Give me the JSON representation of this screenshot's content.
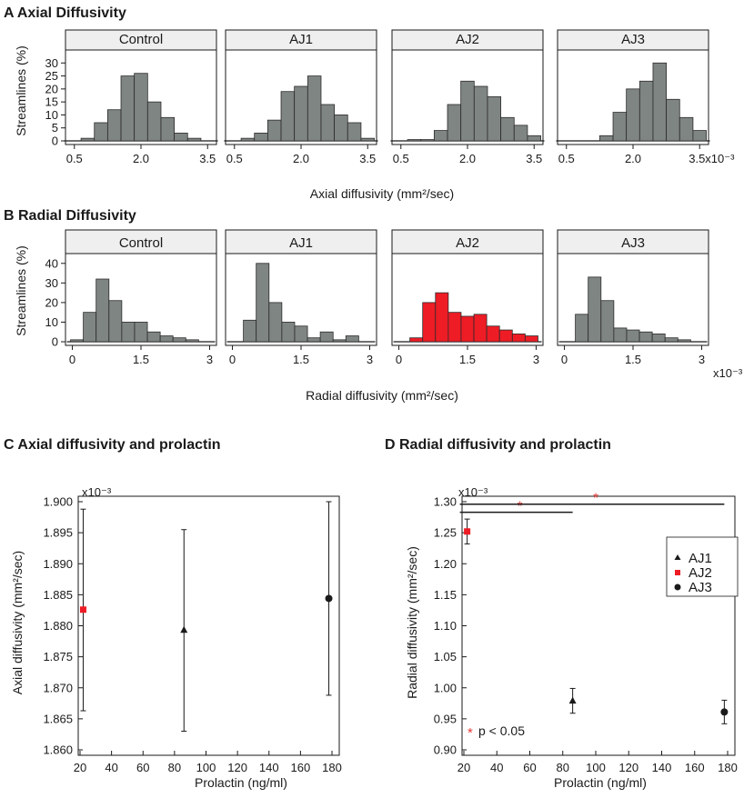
{
  "colors": {
    "gray_bar": "#7f8583",
    "red_bar": "#ee1c25",
    "axis": "#1a1a1a",
    "facet_bg": "#efefef",
    "highlight": "#e53935"
  },
  "chart_data": [
    {
      "id": "A",
      "type": "bar",
      "title": "A Axial Diffusivity",
      "ylabel": "Streamlines (%)",
      "xlabel": "Axial diffusivity (mm²/sec)",
      "exponent": "x10⁻³",
      "ylim": [
        0,
        35
      ],
      "yticks": [
        0,
        5,
        10,
        15,
        20,
        25,
        30
      ],
      "xrange": [
        0.3,
        3.7
      ],
      "xticks": [
        {
          "v": 0.5,
          "label": "0.5"
        },
        {
          "v": 2.0,
          "label": "2.0"
        },
        {
          "v": 3.5,
          "label": "3.5"
        }
      ],
      "last_tick_label": "3.5x10⁻³",
      "bin_width": 0.3,
      "bin_centers": [
        0.5,
        0.8,
        1.1,
        1.4,
        1.7,
        2.0,
        2.3,
        2.6,
        2.9,
        3.2,
        3.5
      ],
      "panels": [
        {
          "label": "Control",
          "color": "gray",
          "values": [
            0,
            1,
            7,
            12,
            25,
            26,
            15,
            9,
            3,
            1,
            0
          ]
        },
        {
          "label": "AJ1",
          "color": "gray",
          "values": [
            0,
            1,
            3,
            8,
            19,
            21,
            25,
            14,
            10,
            7,
            1
          ]
        },
        {
          "label": "AJ2",
          "color": "gray",
          "values": [
            0,
            0.5,
            0.5,
            4,
            14,
            23,
            21,
            17,
            9,
            6,
            2
          ]
        },
        {
          "label": "AJ3",
          "color": "gray",
          "values": [
            0,
            0,
            0,
            2,
            11,
            20,
            23,
            30,
            16,
            9,
            4
          ]
        }
      ]
    },
    {
      "id": "B",
      "type": "bar",
      "title": "B Radial Diffusivity",
      "ylabel": "Streamlines (%)",
      "xlabel": "Radial diffusivity (mm²/sec)",
      "exponent": "x10⁻³",
      "ylim": [
        0,
        45
      ],
      "yticks": [
        0,
        10,
        20,
        30,
        40
      ],
      "xrange": [
        -0.15,
        3.15
      ],
      "xticks": [
        {
          "v": 0,
          "label": "0"
        },
        {
          "v": 1.5,
          "label": "1.5"
        },
        {
          "v": 3,
          "label": "3"
        }
      ],
      "last_tick_label": "3",
      "bin_width": 0.28,
      "bin_centers": [
        0.1,
        0.38,
        0.66,
        0.94,
        1.22,
        1.5,
        1.78,
        2.06,
        2.34,
        2.62,
        2.9
      ],
      "panels": [
        {
          "label": "Control",
          "color": "gray",
          "values": [
            1,
            15,
            32,
            21,
            10,
            10,
            5,
            3,
            2,
            1,
            0
          ]
        },
        {
          "label": "AJ1",
          "color": "gray",
          "values": [
            0,
            11,
            40,
            20,
            10,
            8,
            2,
            5,
            1,
            3,
            0
          ]
        },
        {
          "label": "AJ2",
          "color": "red",
          "values": [
            0,
            2,
            20,
            25,
            15,
            13,
            14,
            8,
            6,
            4,
            3
          ]
        },
        {
          "label": "AJ3",
          "color": "gray",
          "values": [
            0,
            14,
            33,
            21,
            7,
            6,
            5,
            4,
            2,
            1,
            0
          ]
        }
      ]
    },
    {
      "id": "C",
      "type": "scatter",
      "title": "C   Axial diffusivity and prolactin",
      "xlabel": "Prolactin (ng/ml)",
      "ylabel": "Axial diffusivity (mm²/sec)",
      "exponent": "x10⁻³",
      "xlim": [
        20,
        180
      ],
      "xticks": [
        20,
        40,
        60,
        80,
        100,
        120,
        140,
        160,
        180
      ],
      "ylim": [
        1.86,
        1.9
      ],
      "yticks": [
        {
          "v": 1.86,
          "label": "1.860"
        },
        {
          "v": 1.865,
          "label": "1.865"
        },
        {
          "v": 1.87,
          "label": "1.870"
        },
        {
          "v": 1.875,
          "label": "1.875"
        },
        {
          "v": 1.88,
          "label": "1.880"
        },
        {
          "v": 1.885,
          "label": "1.885"
        },
        {
          "v": 1.89,
          "label": "1.890"
        },
        {
          "v": 1.895,
          "label": "1.895"
        },
        {
          "v": 1.9,
          "label": "1.900"
        }
      ],
      "points": [
        {
          "name": "AJ2",
          "marker": "square",
          "x": 22,
          "y": 1.8826,
          "lo": 1.8663,
          "hi": 1.8988
        },
        {
          "name": "AJ1",
          "marker": "triangle",
          "x": 86,
          "y": 1.8793,
          "lo": 1.863,
          "hi": 1.8955
        },
        {
          "name": "AJ3",
          "marker": "circle",
          "x": 178,
          "y": 1.8844,
          "lo": 1.8688,
          "hi": 1.9
        }
      ]
    },
    {
      "id": "D",
      "type": "scatter",
      "title": "D   Radial diffusivity and prolactin",
      "xlabel": "Prolactin (ng/ml)",
      "ylabel": "Radial diffusivity (mm²/sec)",
      "exponent": "x10⁻³",
      "xlim": [
        20,
        180
      ],
      "xticks": [
        20,
        40,
        60,
        80,
        100,
        120,
        140,
        160,
        180
      ],
      "ylim": [
        0.9,
        1.3
      ],
      "yticks": [
        {
          "v": 0.9,
          "label": "0.90"
        },
        {
          "v": 0.95,
          "label": "0.95"
        },
        {
          "v": 1.0,
          "label": "1.00"
        },
        {
          "v": 1.05,
          "label": "1.05"
        },
        {
          "v": 1.1,
          "label": "1.10"
        },
        {
          "v": 1.15,
          "label": "1.15"
        },
        {
          "v": 1.2,
          "label": "1.20"
        },
        {
          "v": 1.25,
          "label": "1.25"
        },
        {
          "v": 1.3,
          "label": "1.30"
        }
      ],
      "points": [
        {
          "name": "AJ2",
          "marker": "square",
          "x": 22,
          "y": 1.252,
          "lo": 1.232,
          "hi": 1.272
        },
        {
          "name": "AJ1",
          "marker": "triangle",
          "x": 86,
          "y": 0.979,
          "lo": 0.959,
          "hi": 0.999
        },
        {
          "name": "AJ3",
          "marker": "circle",
          "x": 178,
          "y": 0.961,
          "lo": 0.942,
          "hi": 0.98
        }
      ],
      "significance": [
        {
          "from": 22,
          "to": 86,
          "y": 1.283,
          "mark": "*"
        },
        {
          "from": 22,
          "to": 178,
          "y": 1.296,
          "mark": "*"
        }
      ],
      "legend": [
        {
          "name": "AJ1",
          "marker": "triangle"
        },
        {
          "name": "AJ2",
          "marker": "square"
        },
        {
          "name": "AJ3",
          "marker": "circle"
        }
      ],
      "note_star": "*",
      "note_text": "p < 0.05"
    }
  ]
}
